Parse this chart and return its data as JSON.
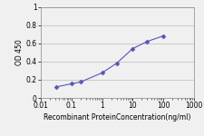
{
  "x": [
    0.031,
    0.1,
    0.2,
    1.0,
    3.0,
    10.0,
    30.0,
    100.0
  ],
  "y": [
    0.12,
    0.155,
    0.175,
    0.275,
    0.38,
    0.54,
    0.62,
    0.68
  ],
  "line_color": "#5555bb",
  "marker": "D",
  "marker_size": 2.5,
  "marker_facecolor": "#5555bb",
  "linewidth": 0.8,
  "xlabel": "Recombinant ProteinConcentration(ng/ml)",
  "ylabel": "OD 450",
  "xlim": [
    0.01,
    1000
  ],
  "ylim": [
    0,
    1.0
  ],
  "yticks": [
    0,
    0.2,
    0.4,
    0.6,
    0.8,
    1.0
  ],
  "ytick_labels": [
    "0",
    "0.2",
    "0.4",
    "0.6",
    "0.8",
    "1"
  ],
  "xticks": [
    0.01,
    0.1,
    1,
    10,
    100,
    1000
  ],
  "xtick_labels": [
    "0.01",
    "0.1",
    "1",
    "10",
    "100",
    "1000"
  ],
  "background_color": "#f0f0f0",
  "plot_bg_color": "#f0f0f0",
  "grid_color": "#bbbbbb",
  "xlabel_fontsize": 5.5,
  "ylabel_fontsize": 5.5,
  "tick_fontsize": 5.5
}
